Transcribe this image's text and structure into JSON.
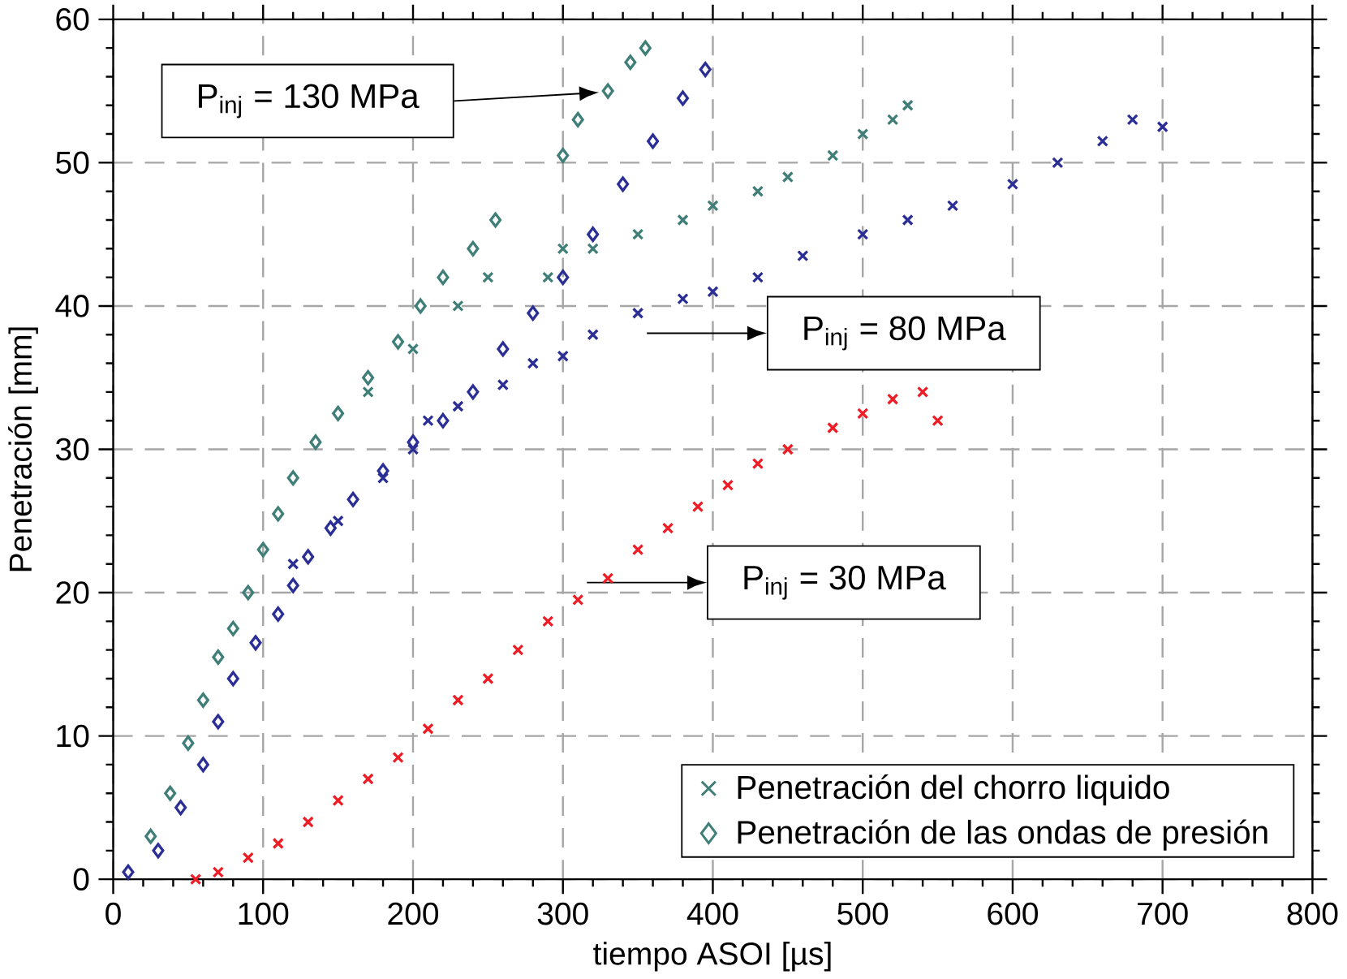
{
  "chart_data": {
    "type": "scatter",
    "xlabel": "tiempo ASOI [µs]",
    "ylabel": "Penetración [mm]",
    "xlim": [
      0,
      800
    ],
    "ylim": [
      0,
      60
    ],
    "xticks": [
      0,
      100,
      200,
      300,
      400,
      500,
      600,
      700,
      800
    ],
    "yticks": [
      0,
      10,
      20,
      30,
      40,
      50,
      60
    ],
    "grid": true,
    "legend": "bottom right",
    "series": [
      {
        "name": "Penetración del chorro liquido",
        "color": "#3f7f78",
        "marker": "cross",
        "x": [
          170,
          200,
          230,
          250,
          290,
          300,
          320,
          350,
          380,
          400,
          430,
          450,
          480,
          500,
          520,
          530
        ],
        "values": [
          34,
          37,
          40,
          42,
          42,
          44,
          44,
          45,
          46,
          47,
          48,
          49,
          50.5,
          52,
          53,
          54
        ]
      },
      {
        "name": "Penetración de las ondas de presión",
        "color": "#3f7f78",
        "marker": "diamond",
        "x": [
          25,
          38,
          50,
          60,
          70,
          80,
          90,
          100,
          110,
          120,
          135,
          150,
          170,
          190,
          205,
          220,
          240,
          255,
          300,
          310,
          330,
          345,
          355
        ],
        "values": [
          3,
          6,
          9.5,
          12.5,
          15.5,
          17.5,
          20,
          23,
          25.5,
          28,
          30.5,
          32.5,
          35,
          37.5,
          40,
          42,
          44,
          46,
          50.5,
          53,
          55,
          57,
          58
        ]
      },
      {
        "color": "#2b2f95",
        "marker": "diamond",
        "x": [
          10,
          30,
          45,
          60,
          70,
          80,
          95,
          110,
          120,
          130,
          145,
          160,
          180,
          200,
          220,
          240,
          260,
          280,
          300,
          320,
          340,
          360,
          380,
          395
        ],
        "values": [
          0.5,
          2,
          5,
          8,
          11,
          14,
          16.5,
          18.5,
          20.5,
          22.5,
          24.5,
          26.5,
          28.5,
          30.5,
          32,
          34,
          37,
          39.5,
          42,
          45,
          48.5,
          51.5,
          54.5,
          56.5
        ]
      },
      {
        "color": "#2b2f95",
        "marker": "cross",
        "x": [
          120,
          150,
          180,
          200,
          210,
          230,
          260,
          280,
          300,
          320,
          350,
          380,
          400,
          430,
          460,
          500,
          530,
          560,
          600,
          630,
          660,
          680,
          700
        ],
        "values": [
          22,
          25,
          28,
          30,
          32,
          33,
          34.5,
          36,
          36.5,
          38,
          39.5,
          40.5,
          41,
          42,
          43.5,
          45,
          46,
          47,
          48.5,
          50,
          51.5,
          53,
          52.5
        ]
      },
      {
        "color": "#ee1c25",
        "marker": "cross",
        "x": [
          55,
          70,
          90,
          110,
          130,
          150,
          170,
          190,
          210,
          230,
          250,
          270,
          290,
          310,
          330,
          350,
          370,
          390,
          410,
          430,
          450,
          480,
          500,
          520,
          540,
          550
        ],
        "values": [
          0,
          0.5,
          1.5,
          2.5,
          4,
          5.5,
          7,
          8.5,
          10.5,
          12.5,
          14,
          16,
          18,
          19.5,
          21,
          23,
          24.5,
          26,
          27.5,
          29,
          30,
          31.5,
          32.5,
          33.5,
          34,
          32
        ]
      }
    ],
    "annotations": [
      "P$_{inj}$ = 130 MPa",
      "P$_{inj}$ = 80 MPa",
      "P$_{inj}$ = 30 MPa"
    ]
  }
}
